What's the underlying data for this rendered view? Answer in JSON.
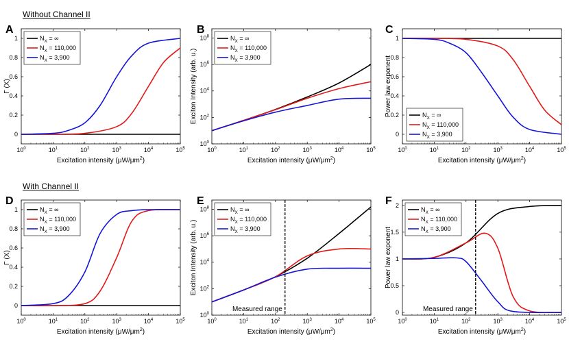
{
  "section_titles": {
    "top": "Without Channel II",
    "bottom": "With Channel II"
  },
  "colors": {
    "inf": "#000000",
    "n110": "#e11a1a",
    "n3900": "#1515d6",
    "axis": "#000000",
    "grid": "#d9d9d9"
  },
  "legend": {
    "prefix": "N",
    "sub": "X",
    "entries": [
      " = ∞",
      " = 110,000",
      " = 3,900"
    ]
  },
  "xlabel": {
    "pre": "Excitation intensity (",
    "mu": "μ",
    "unit": "W/",
    "mu2": "μ",
    "m": "m",
    "sup": "2",
    "post": ")"
  },
  "ylabels": {
    "gamma": "Γ (X)",
    "exciton": "Exciton Intensity (arb. u.)",
    "power": "Power law exponent"
  },
  "annotation": "Measured range",
  "chart_data": [
    {
      "panel": "A",
      "type": "line",
      "title": "",
      "xlabel": "Excitation intensity (μW/μm²)",
      "ylabel": "Γ (X)",
      "xscale": "log",
      "xlim": [
        1,
        100000
      ],
      "ylim": [
        -0.1,
        1.1
      ],
      "yticks": [
        0,
        0.2,
        0.4,
        0.6,
        0.8,
        1
      ],
      "series": [
        {
          "name": "N_X = ∞",
          "x": [
            1,
            10,
            100,
            1000,
            10000,
            100000
          ],
          "y": [
            0,
            0,
            0,
            0,
            0,
            0
          ]
        },
        {
          "name": "N_X = 110,000",
          "x": [
            1,
            10,
            100,
            1000,
            3000,
            10000,
            30000,
            100000
          ],
          "y": [
            0,
            0,
            0.01,
            0.08,
            0.22,
            0.5,
            0.75,
            0.9
          ]
        },
        {
          "name": "N_X = 3,900",
          "x": [
            1,
            10,
            30,
            100,
            300,
            1000,
            3000,
            10000,
            100000
          ],
          "y": [
            0,
            0.01,
            0.04,
            0.12,
            0.3,
            0.6,
            0.82,
            0.95,
            1.0
          ]
        }
      ]
    },
    {
      "panel": "B",
      "type": "line",
      "title": "",
      "xlabel": "Excitation intensity (μW/μm²)",
      "ylabel": "Exciton Intensity (arb. u.)",
      "xscale": "log",
      "yscale": "log",
      "xlim": [
        1,
        100000
      ],
      "ylim": [
        1,
        500000000
      ],
      "yticks": [
        1,
        100,
        10000,
        1000000,
        100000000
      ],
      "series": [
        {
          "name": "N_X = ∞",
          "x": [
            1,
            10,
            100,
            1000,
            10000,
            100000
          ],
          "y": [
            10,
            60,
            400,
            3500,
            40000,
            1000000
          ]
        },
        {
          "name": "N_X = 110,000",
          "x": [
            1,
            10,
            100,
            1000,
            10000,
            100000
          ],
          "y": [
            10,
            60,
            380,
            2800,
            15000,
            50000
          ]
        },
        {
          "name": "N_X = 3,900",
          "x": [
            1,
            10,
            100,
            1000,
            10000,
            100000
          ],
          "y": [
            10,
            55,
            250,
            800,
            2400,
            2800
          ]
        }
      ]
    },
    {
      "panel": "C",
      "type": "line",
      "title": "",
      "xlabel": "Excitation intensity (μW/μm²)",
      "ylabel": "Power law exponent",
      "xscale": "log",
      "xlim": [
        1,
        100000
      ],
      "ylim": [
        -0.1,
        1.1
      ],
      "yticks": [
        0,
        0.2,
        0.4,
        0.6,
        0.8,
        1
      ],
      "series": [
        {
          "name": "N_X = ∞",
          "x": [
            1,
            10,
            100,
            1000,
            10000,
            100000
          ],
          "y": [
            1,
            1,
            1,
            1,
            1,
            1
          ]
        },
        {
          "name": "N_X = 110,000",
          "x": [
            1,
            10,
            100,
            1000,
            3000,
            10000,
            30000,
            100000
          ],
          "y": [
            1,
            1,
            0.99,
            0.92,
            0.78,
            0.5,
            0.25,
            0.1
          ]
        },
        {
          "name": "N_X = 3,900",
          "x": [
            1,
            10,
            30,
            100,
            300,
            1000,
            3000,
            10000,
            100000
          ],
          "y": [
            1,
            0.99,
            0.95,
            0.85,
            0.65,
            0.4,
            0.18,
            0.05,
            0
          ]
        }
      ]
    },
    {
      "panel": "D",
      "type": "line",
      "title": "",
      "xlabel": "Excitation intensity (μW/μm²)",
      "ylabel": "Γ (X)",
      "xscale": "log",
      "xlim": [
        1,
        100000
      ],
      "ylim": [
        -0.1,
        1.1
      ],
      "yticks": [
        0,
        0.2,
        0.4,
        0.6,
        0.8,
        1
      ],
      "series": [
        {
          "name": "N_X = ∞",
          "x": [
            1,
            10,
            100,
            1000,
            10000,
            100000
          ],
          "y": [
            0,
            0,
            0,
            0,
            0,
            0
          ]
        },
        {
          "name": "N_X = 110,000",
          "x": [
            1,
            10,
            100,
            300,
            1000,
            3000,
            10000,
            100000
          ],
          "y": [
            0,
            0,
            0.02,
            0.15,
            0.5,
            0.88,
            0.99,
            1.0
          ]
        },
        {
          "name": "N_X = 3,900",
          "x": [
            1,
            10,
            30,
            100,
            300,
            1000,
            3000,
            10000,
            100000
          ],
          "y": [
            0,
            0.02,
            0.1,
            0.35,
            0.75,
            0.95,
            0.99,
            1.0,
            1.0
          ]
        }
      ]
    },
    {
      "panel": "E",
      "type": "line",
      "title": "",
      "xlabel": "Excitation intensity (μW/μm²)",
      "ylabel": "Exciton Intensity (arb. u.)",
      "xscale": "log",
      "yscale": "log",
      "xlim": [
        1,
        100000
      ],
      "ylim": [
        1,
        500000000
      ],
      "yticks": [
        1,
        100,
        10000,
        1000000,
        100000000
      ],
      "vline": {
        "x": 200,
        "label": "Measured range"
      },
      "series": [
        {
          "name": "N_X = ∞",
          "x": [
            1,
            10,
            100,
            1000,
            10000,
            100000
          ],
          "y": [
            10,
            80,
            800,
            20000,
            1500000,
            150000000
          ]
        },
        {
          "name": "N_X = 110,000",
          "x": [
            1,
            10,
            100,
            1000,
            10000,
            100000
          ],
          "y": [
            10,
            80,
            800,
            30000,
            100000,
            100000
          ]
        },
        {
          "name": "N_X = 3,900",
          "x": [
            1,
            10,
            100,
            1000,
            10000,
            100000
          ],
          "y": [
            10,
            80,
            750,
            3000,
            3500,
            3500
          ]
        }
      ]
    },
    {
      "panel": "F",
      "type": "line",
      "title": "",
      "xlabel": "Excitation intensity (μW/μm²)",
      "ylabel": "Power law exponent",
      "xscale": "log",
      "xlim": [
        1,
        100000
      ],
      "ylim": [
        -0.05,
        2.1
      ],
      "yticks": [
        0,
        0.5,
        1,
        1.5,
        2
      ],
      "vline": {
        "x": 200,
        "label": "Measured range"
      },
      "series": [
        {
          "name": "N_X = ∞",
          "x": [
            1,
            10,
            100,
            1000,
            10000,
            100000
          ],
          "y": [
            1,
            1.03,
            1.3,
            1.85,
            1.98,
            2.0
          ]
        },
        {
          "name": "N_X = 110,000",
          "x": [
            1,
            10,
            100,
            400,
            1000,
            3000,
            10000,
            100000
          ],
          "y": [
            1,
            1.03,
            1.3,
            1.48,
            1.2,
            0.3,
            0.03,
            0
          ]
        },
        {
          "name": "N_X = 3,900",
          "x": [
            1,
            10,
            50,
            100,
            300,
            1000,
            3000,
            100000
          ],
          "y": [
            1,
            1.01,
            1.02,
            0.95,
            0.6,
            0.2,
            0.02,
            0
          ]
        }
      ]
    }
  ]
}
